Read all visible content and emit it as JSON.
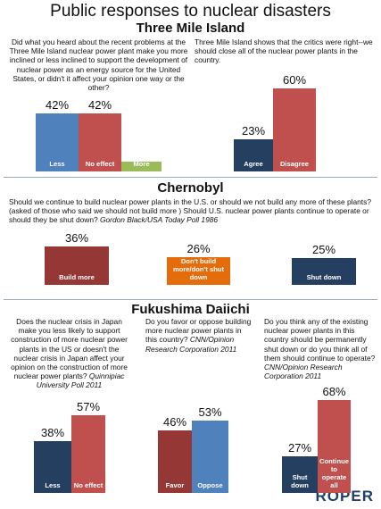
{
  "title": "Public responses to nuclear disasters",
  "sections": [
    {
      "heading": "Three Mile Island"
    },
    {
      "heading": "Chernobyl"
    },
    {
      "heading": "Fukushima Daiichi"
    }
  ],
  "logo": "ROPER",
  "chart_data": [
    {
      "type": "bar",
      "question": "Did what you heard about the recent problems at the Three Mile Island nuclear power plant make you more inclined or less inclined to support the development of nuclear power as an energy source for the United States, or didn't it affect your opinion one way or the other?",
      "categories": [
        "Less",
        "No effect",
        "More"
      ],
      "values": [
        42,
        42,
        7
      ],
      "value_labels": [
        "42%",
        "42%",
        null
      ],
      "colors": [
        "#4f81bd",
        "#c0504d",
        "#9bbb59"
      ]
    },
    {
      "type": "bar",
      "question": "Three Mile Island shows that the critics were right--we should close all of the nuclear power plants in the country.",
      "categories": [
        "Agree",
        "Disagree"
      ],
      "values": [
        23,
        60
      ],
      "value_labels": [
        "23%",
        "60%"
      ],
      "colors": [
        "#243f60",
        "#c0504d"
      ]
    },
    {
      "type": "bar",
      "question": "Should we continue to build nuclear power plants in the U.S. or should we not build any more of these plants? (asked of those who said we should not build more ) Should U.S. nuclear power plants continue to operate or should they be shut down?",
      "source": "Gordon Black/USA Today Poll 1986",
      "categories": [
        "Build more",
        "Don't build more/don't shut down",
        "Shut down"
      ],
      "values": [
        36,
        26,
        25
      ],
      "value_labels": [
        "36%",
        "26%",
        "25%"
      ],
      "colors": [
        "#953735",
        "#e46c0a",
        "#243f60"
      ]
    },
    {
      "type": "bar",
      "question": "Does the nuclear crisis in Japan make you less likely to support construction of more nuclear power plants in the US or doesn't the nuclear crisis in Japan affect your opinion on the construction of more nuclear power plants?",
      "source": "Quinnipiac University Poll 2011",
      "categories": [
        "Less",
        "No effect"
      ],
      "values": [
        38,
        57
      ],
      "value_labels": [
        "38%",
        "57%"
      ],
      "colors": [
        "#243f60",
        "#c0504d"
      ]
    },
    {
      "type": "bar",
      "question": "Do you favor or oppose building more nuclear power plants in this country?",
      "source": "CNN/Opinion Research Corporation 2011",
      "categories": [
        "Favor",
        "Oppose"
      ],
      "values": [
        46,
        53
      ],
      "value_labels": [
        "46%",
        "53%"
      ],
      "colors": [
        "#953735",
        "#4f81bd"
      ]
    },
    {
      "type": "bar",
      "question": "Do you think any of the existing nuclear power plants in this country should be permanently shut down or do you think all of them should continue to operate?",
      "source": "CNN/Opinion Research Corporation 2011",
      "categories": [
        "Shut down",
        "Continue to operate all"
      ],
      "values": [
        27,
        68
      ],
      "value_labels": [
        "27%",
        "68%"
      ],
      "colors": [
        "#243f60",
        "#c0504d"
      ]
    }
  ]
}
